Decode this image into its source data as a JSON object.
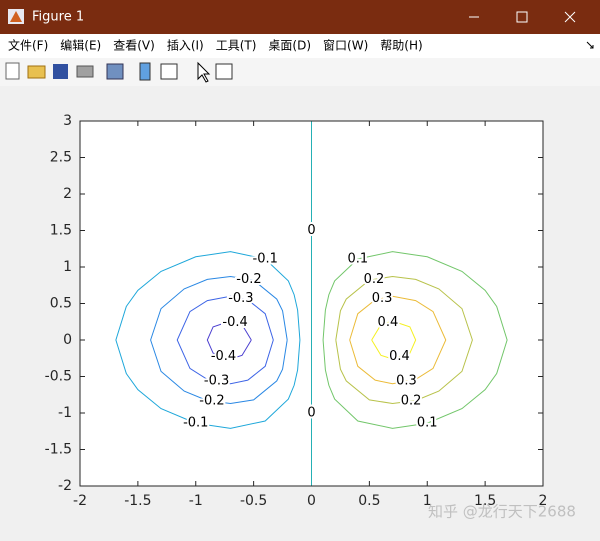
{
  "window": {
    "title": "Figure 1",
    "menu": [
      "文件(F)",
      "编辑(E)",
      "查看(V)",
      "插入(I)",
      "工具(T)",
      "桌面(D)",
      "窗口(W)",
      "帮助(H)"
    ]
  },
  "watermark": "知乎 @龙行天下2688",
  "chart_data": {
    "type": "contour",
    "xlim": [
      -2,
      2
    ],
    "ylim": [
      -2,
      3
    ],
    "xticks": [
      -2,
      -1.5,
      -1,
      -0.5,
      0,
      0.5,
      1,
      1.5,
      2
    ],
    "yticks": [
      -2,
      -1.5,
      -1,
      -0.5,
      0,
      0.5,
      1,
      1.5,
      2,
      2.5,
      3
    ],
    "series": [
      {
        "level": -0.4,
        "color": "#4b3fd0",
        "x": [
          -0.52,
          -0.6,
          -0.7,
          -0.85,
          -0.9,
          -0.85,
          -0.7,
          -0.6,
          -0.52
        ],
        "y": [
          0,
          0.21,
          0.26,
          0.18,
          0,
          -0.18,
          -0.26,
          -0.21,
          0
        ]
      },
      {
        "level": -0.3,
        "color": "#3d64e6",
        "x": [
          -0.33,
          -0.4,
          -0.55,
          -0.7,
          -0.9,
          -1.05,
          -1.16,
          -1.05,
          -0.9,
          -0.7,
          -0.55,
          -0.4,
          -0.33
        ],
        "y": [
          0,
          0.36,
          0.55,
          0.6,
          0.54,
          0.39,
          0,
          -0.39,
          -0.54,
          -0.6,
          -0.55,
          -0.36,
          0
        ]
      },
      {
        "level": -0.2,
        "color": "#2a88e4",
        "x": [
          -0.21,
          -0.25,
          -0.3,
          -0.5,
          -0.7,
          -0.9,
          -1.1,
          -1.3,
          -1.39,
          -1.3,
          -1.1,
          -0.9,
          -0.7,
          -0.5,
          -0.3,
          -0.25,
          -0.21
        ],
        "y": [
          0,
          0.4,
          0.56,
          0.82,
          0.87,
          0.83,
          0.7,
          0.43,
          0,
          -0.43,
          -0.7,
          -0.83,
          -0.87,
          -0.82,
          -0.56,
          -0.4,
          0
        ]
      },
      {
        "level": -0.1,
        "color": "#1ea7da",
        "x": [
          -0.1,
          -0.12,
          -0.15,
          -0.2,
          -0.4,
          -0.7,
          -1,
          -1.3,
          -1.5,
          -1.6,
          -1.69,
          -1.6,
          -1.5,
          -1.3,
          -1,
          -0.7,
          -0.4,
          -0.2,
          -0.15,
          -0.12,
          -0.1
        ],
        "y": [
          0,
          0.41,
          0.62,
          0.81,
          1.11,
          1.21,
          1.14,
          0.94,
          0.68,
          0.46,
          0,
          -0.46,
          -0.68,
          -0.94,
          -1.14,
          -1.21,
          -1.11,
          -0.81,
          -0.62,
          -0.41,
          0
        ]
      },
      {
        "level": 0,
        "color": "#25b0b5",
        "x": [
          0,
          0
        ],
        "y": [
          -2,
          3
        ]
      },
      {
        "level": 0.1,
        "color": "#72c66a",
        "x": [
          0.1,
          0.12,
          0.15,
          0.2,
          0.4,
          0.7,
          1,
          1.3,
          1.5,
          1.6,
          1.69,
          1.6,
          1.5,
          1.3,
          1,
          0.7,
          0.4,
          0.2,
          0.15,
          0.12,
          0.1
        ],
        "y": [
          0,
          0.41,
          0.62,
          0.81,
          1.11,
          1.21,
          1.14,
          0.94,
          0.68,
          0.46,
          0,
          -0.46,
          -0.68,
          -0.94,
          -1.14,
          -1.21,
          -1.11,
          -0.81,
          -0.62,
          -0.41,
          0
        ]
      },
      {
        "level": 0.2,
        "color": "#b8c24a",
        "x": [
          0.21,
          0.25,
          0.3,
          0.5,
          0.7,
          0.9,
          1.1,
          1.3,
          1.39,
          1.3,
          1.1,
          0.9,
          0.7,
          0.5,
          0.3,
          0.25,
          0.21
        ],
        "y": [
          0,
          0.4,
          0.56,
          0.82,
          0.87,
          0.83,
          0.7,
          0.43,
          0,
          -0.43,
          -0.7,
          -0.83,
          -0.87,
          -0.82,
          -0.56,
          -0.4,
          0
        ]
      },
      {
        "level": 0.3,
        "color": "#ebbb38",
        "x": [
          0.33,
          0.4,
          0.55,
          0.7,
          0.9,
          1.05,
          1.16,
          1.05,
          0.9,
          0.7,
          0.55,
          0.4,
          0.33
        ],
        "y": [
          0,
          0.36,
          0.55,
          0.6,
          0.54,
          0.39,
          0,
          -0.39,
          -0.54,
          -0.6,
          -0.55,
          -0.36,
          0
        ]
      },
      {
        "level": 0.4,
        "color": "#f5f01f",
        "x": [
          0.52,
          0.6,
          0.7,
          0.85,
          0.9,
          0.85,
          0.7,
          0.6,
          0.52
        ],
        "y": [
          0,
          0.21,
          0.26,
          0.18,
          0,
          -0.18,
          -0.26,
          -0.21,
          0
        ]
      }
    ]
  }
}
